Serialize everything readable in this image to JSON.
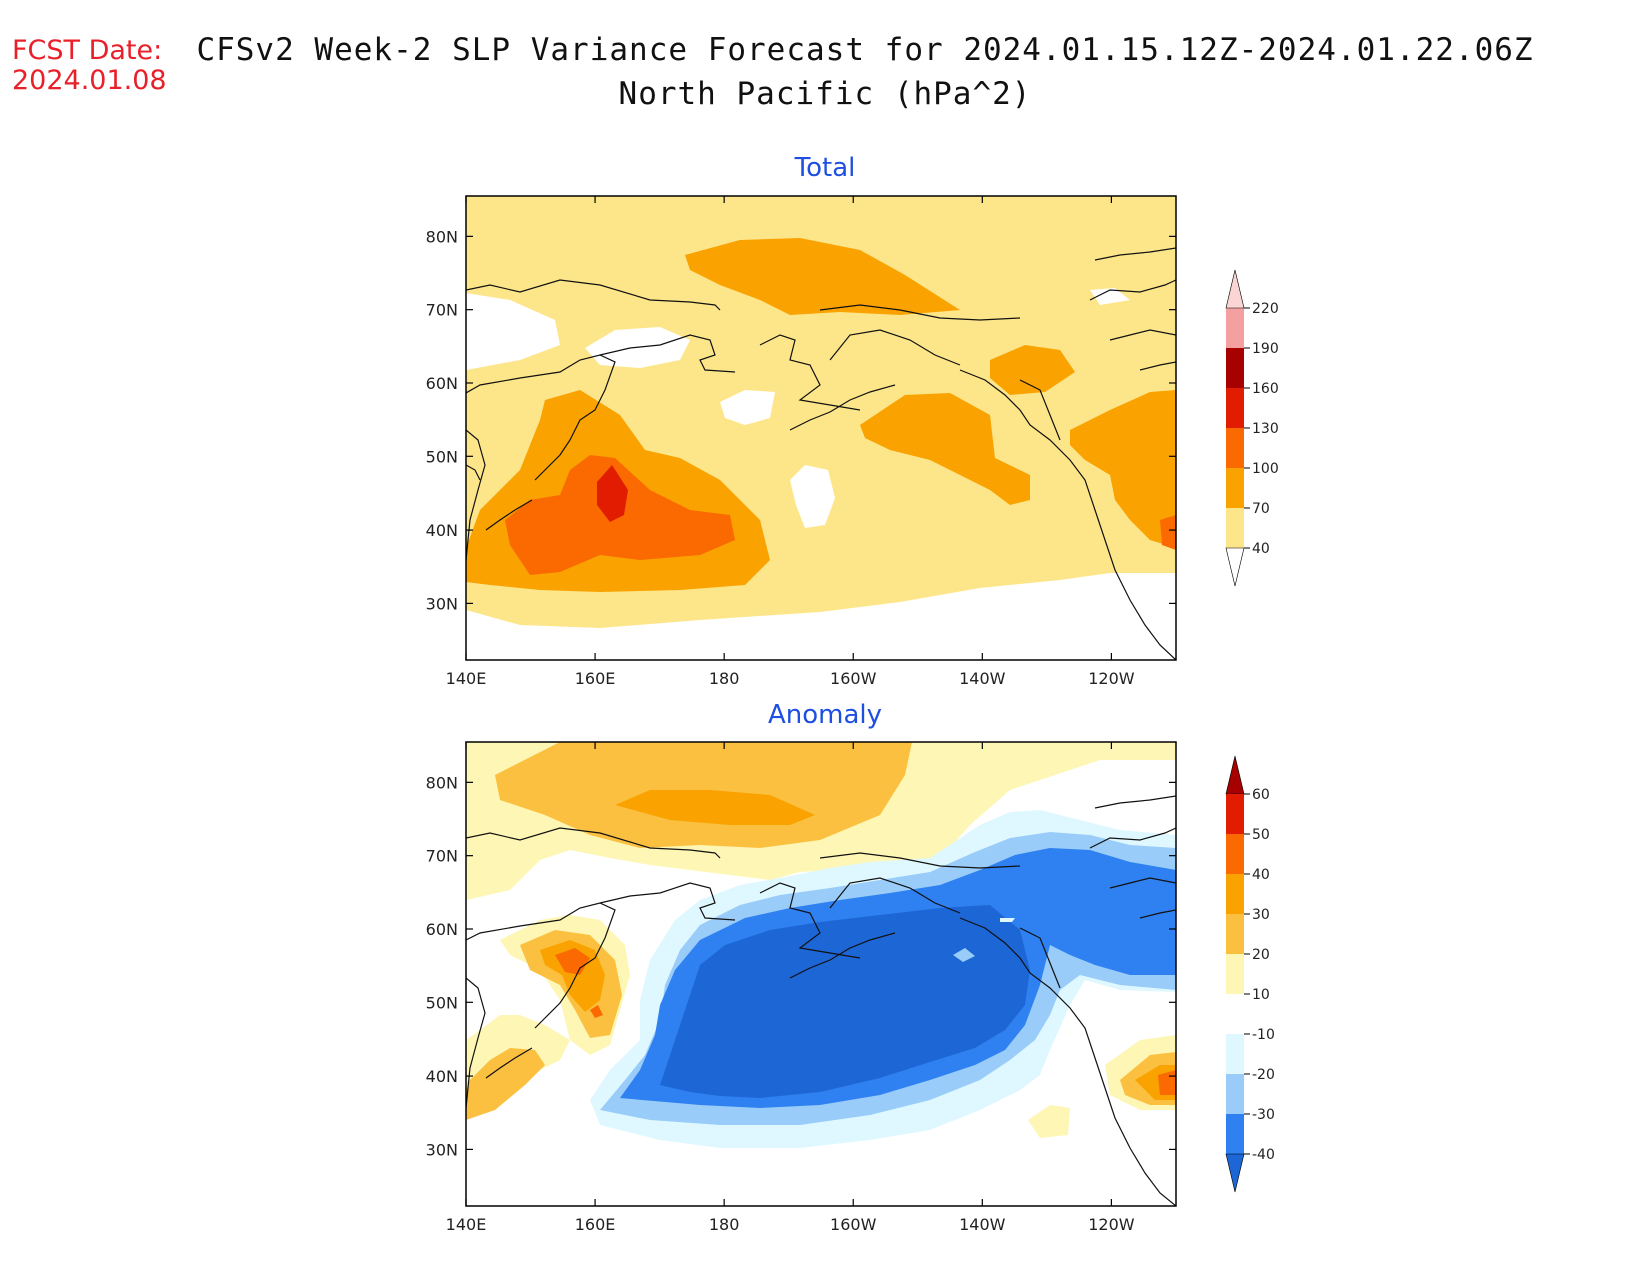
{
  "header": {
    "fcst_label": "FCST Date:",
    "fcst_date": "2024.01.08",
    "title_line1": "CFSv2 Week-2 SLP Variance Forecast for 2024.01.15.12Z-2024.01.22.06Z",
    "title_line2": "North Pacific (hPa^2)"
  },
  "axes": {
    "lat_labels": [
      "80N",
      "70N",
      "60N",
      "50N",
      "40N",
      "30N"
    ],
    "lon_labels": [
      "140E",
      "160E",
      "180",
      "160W",
      "140W",
      "120W"
    ]
  },
  "panels": [
    {
      "title": "Total",
      "colorbar": {
        "levels": [
          "40",
          "70",
          "100",
          "130",
          "160",
          "190",
          "220"
        ],
        "colors": [
          "#fde68a",
          "#f9a200",
          "#fb6a00",
          "#e11c00",
          "#a60000",
          "#f4a0a0",
          "#fbd4d4"
        ]
      }
    },
    {
      "title": "Anomaly",
      "colorbar": {
        "levels": [
          "60",
          "50",
          "40",
          "30",
          "20",
          "10",
          "-10",
          "-20",
          "-30",
          "-40"
        ],
        "colors": [
          "#a60000",
          "#e11c00",
          "#fb6a00",
          "#f9a200",
          "#fbc040",
          "#fef6b4",
          "#ffffff",
          "#dff8ff",
          "#99ccf9",
          "#2f80f0",
          "#1d66d6"
        ]
      }
    }
  ],
  "chart_data": {
    "type": "heatmap",
    "domain": {
      "lon_range": [
        "140E",
        "110W"
      ],
      "lat_range": [
        "25N",
        "85N"
      ]
    },
    "total_regions": [
      {
        "location": "near 160E 45N",
        "level": "130-160"
      },
      {
        "location": "150E-175E 40N-50N",
        "level": "100-130"
      },
      {
        "location": "145E-180 35N-55N",
        "level": "70-100"
      },
      {
        "location": "Arctic north of Bering Strait",
        "level": "70-100"
      },
      {
        "location": "Gulf of Alaska 150W 52N",
        "level": "70-100"
      },
      {
        "location": "west coast North America 115W 45N",
        "level": "70-100"
      },
      {
        "location": "background",
        "level": "40-70"
      }
    ],
    "anomaly_regions": [
      {
        "location": "Bering Sea / Gulf of Alaska",
        "level": "-40 to -30"
      },
      {
        "location": "Kamchatka 160E 57N",
        "level": "30-40"
      },
      {
        "location": "Arctic north of Siberia",
        "level": "20-30"
      },
      {
        "location": "off California 112W 40N",
        "level": "30-40"
      },
      {
        "location": "near Japan 148E 40N",
        "level": "20-30"
      }
    ]
  }
}
